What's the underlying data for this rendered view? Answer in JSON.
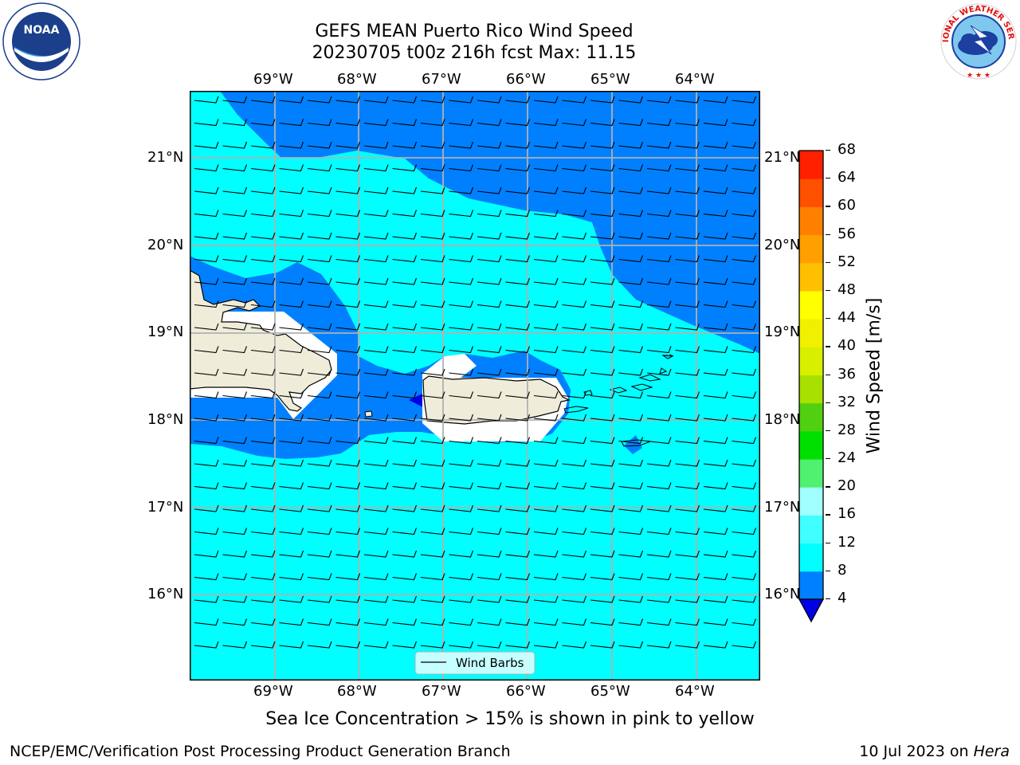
{
  "header": {
    "title_line1": "GEFS MEAN Puerto Rico Wind Speed",
    "title_line2": "20230705 t00z 216h fcst   Max: 11.15"
  },
  "logos": {
    "left": {
      "icon": "noaa-logo",
      "text": "NOAA",
      "ring_text": "NATIONAL OCEANIC AND ATMOSPHERIC ADMINISTRATION · U.S. DEPARTMENT OF COMMERCE"
    },
    "right": {
      "icon": "nws-logo",
      "ring_text": "NATIONAL WEATHER SERVICE"
    }
  },
  "map": {
    "lon_labels": [
      "69°W",
      "68°W",
      "67°W",
      "66°W",
      "65°W",
      "64°W"
    ],
    "lat_labels": [
      "21°N",
      "20°N",
      "19°N",
      "18°N",
      "17°N",
      "16°N"
    ],
    "legend_label": "Wind Barbs",
    "colors": {
      "land": "#efedda",
      "level_4_8": "#0080ff",
      "level_8_12": "#00ffff",
      "below_4": "#0000e6",
      "grid": "#b0b0b0"
    }
  },
  "colorbar": {
    "label": "Wind Speed [m/s]",
    "ticks": [
      "4",
      "8",
      "12",
      "16",
      "20",
      "24",
      "28",
      "32",
      "36",
      "40",
      "44",
      "48",
      "52",
      "56",
      "60",
      "64",
      "68"
    ],
    "colors": [
      "#0080ff",
      "#00ffff",
      "#40ffff",
      "#a0ffff",
      "#50f070",
      "#00e000",
      "#50d010",
      "#a8e000",
      "#d8f000",
      "#f0f000",
      "#ffff00",
      "#ffc000",
      "#ffa000",
      "#ff8000",
      "#ff5000",
      "#ff2000",
      "#ff0000"
    ],
    "extend_min_color": "#0000e6"
  },
  "note": "Sea Ice Concentration > 15% is shown in pink to yellow",
  "footer": {
    "left": "NCEP/EMC/Verification Post Processing Product Generation Branch",
    "right_prefix": "10 Jul 2023 on ",
    "right_host": "Hera"
  }
}
